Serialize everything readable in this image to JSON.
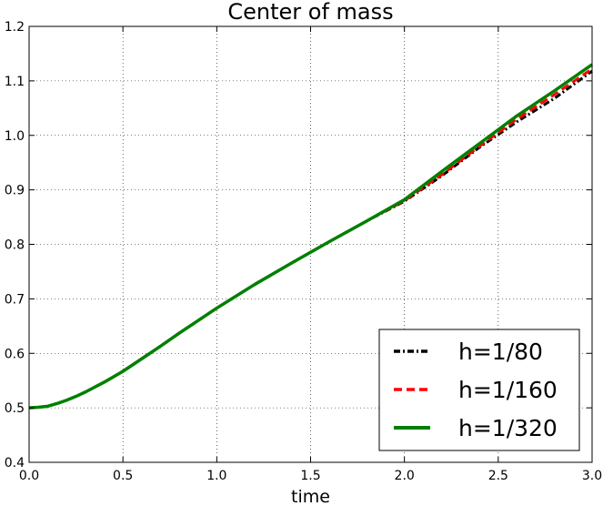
{
  "chart_data": {
    "type": "line",
    "title": "Center of mass",
    "xlabel": "time",
    "ylabel": "",
    "xlim": [
      0.0,
      3.0
    ],
    "ylim": [
      0.4,
      1.2
    ],
    "xticks": [
      "0.0",
      "0.5",
      "1.0",
      "1.5",
      "2.0",
      "2.5",
      "3.0"
    ],
    "yticks": [
      "0.4",
      "0.5",
      "0.6",
      "0.7",
      "0.8",
      "0.9",
      "1.0",
      "1.1",
      "1.2"
    ],
    "grid": true,
    "legend_position": "lower-right",
    "x": [
      0.0,
      0.05,
      0.1,
      0.15,
      0.2,
      0.25,
      0.3,
      0.4,
      0.5,
      0.6,
      0.7,
      0.8,
      0.9,
      1.0,
      1.2,
      1.4,
      1.6,
      1.8,
      2.0,
      2.2,
      2.4,
      2.6,
      2.8,
      3.0
    ],
    "series": [
      {
        "name": "h=1/80",
        "color": "#000000",
        "style": "dashdot",
        "values": [
          0.5,
          0.501,
          0.503,
          0.508,
          0.514,
          0.521,
          0.529,
          0.547,
          0.567,
          0.59,
          0.613,
          0.637,
          0.66,
          0.683,
          0.726,
          0.766,
          0.805,
          0.843,
          0.879,
          0.926,
          0.978,
          1.025,
          1.068,
          1.118
        ]
      },
      {
        "name": "h=1/160",
        "color": "#ff0000",
        "style": "dashed",
        "values": [
          0.5,
          0.501,
          0.503,
          0.508,
          0.514,
          0.521,
          0.529,
          0.547,
          0.567,
          0.59,
          0.613,
          0.637,
          0.66,
          0.683,
          0.726,
          0.766,
          0.805,
          0.843,
          0.88,
          0.928,
          0.98,
          1.03,
          1.075,
          1.122
        ]
      },
      {
        "name": "h=1/320",
        "color": "#008000",
        "style": "solid",
        "values": [
          0.5,
          0.501,
          0.503,
          0.508,
          0.514,
          0.521,
          0.529,
          0.547,
          0.567,
          0.59,
          0.613,
          0.637,
          0.66,
          0.683,
          0.726,
          0.766,
          0.805,
          0.843,
          0.882,
          0.934,
          0.985,
          1.036,
          1.082,
          1.13
        ]
      }
    ]
  }
}
